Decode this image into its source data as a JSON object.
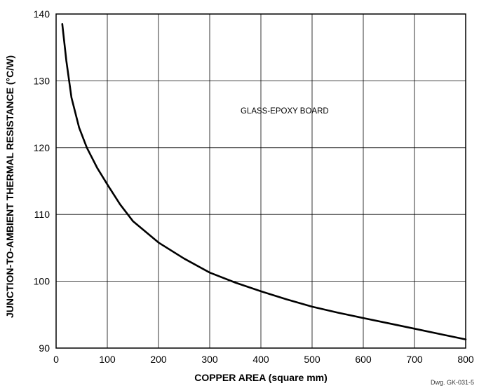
{
  "chart_data": {
    "type": "line",
    "xlabel": "COPPER AREA (square mm)",
    "ylabel": "JUNCTION-TO-AMBIENT THERMAL RESISTANCE (°C/W)",
    "xlim": [
      0,
      800
    ],
    "ylim": [
      90,
      140
    ],
    "xticks": [
      "0",
      "100",
      "200",
      "300",
      "400",
      "500",
      "600",
      "700",
      "800"
    ],
    "yticks": [
      "90",
      "100",
      "110",
      "120",
      "130",
      "140"
    ],
    "grid": true,
    "annotation": "GLASS-EPOXY BOARD",
    "drawing_id": "Dwg. GK-031-5",
    "series": [
      {
        "x": [
          12,
          20,
          30,
          45,
          60,
          80,
          100,
          125,
          150,
          200,
          250,
          300,
          350,
          400,
          450,
          500,
          550,
          600,
          650,
          700,
          750,
          800
        ],
        "y": [
          138.5,
          133.0,
          127.5,
          123.0,
          120.0,
          117.0,
          114.5,
          111.5,
          109.0,
          105.8,
          103.4,
          101.3,
          99.8,
          98.5,
          97.3,
          96.2,
          95.3,
          94.5,
          93.7,
          92.9,
          92.1,
          91.3
        ]
      }
    ]
  }
}
